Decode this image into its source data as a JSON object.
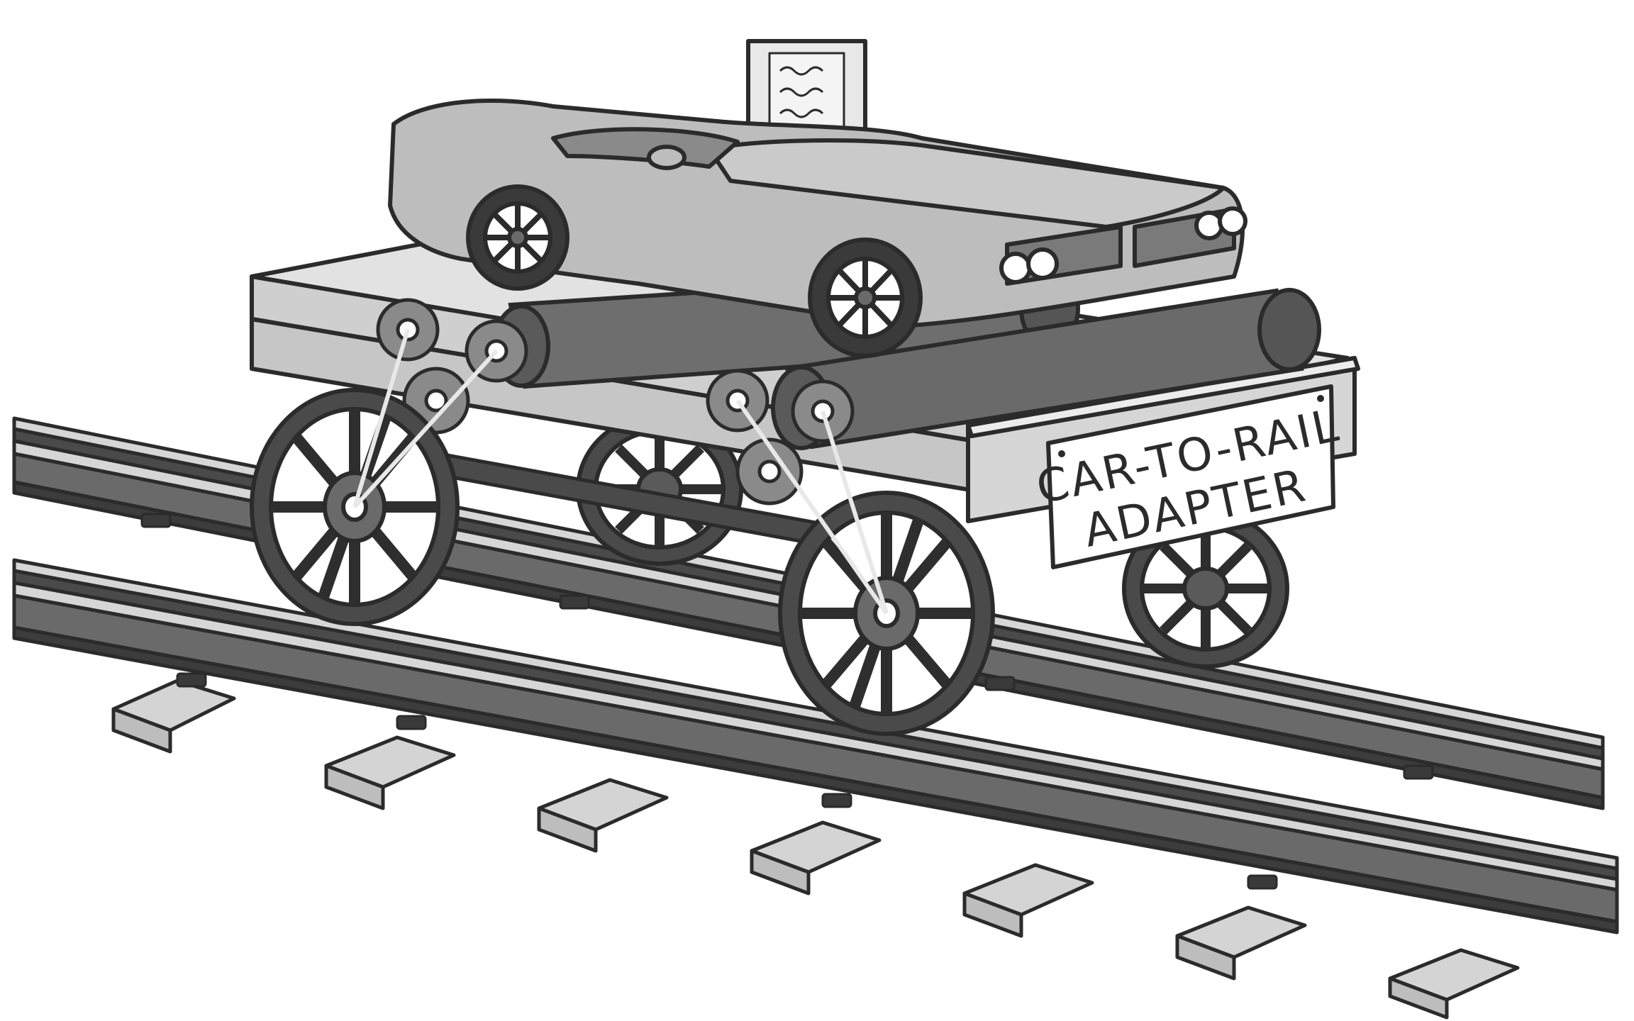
{
  "sign": {
    "line1": "CAR-TO-RAIL",
    "line2": "ADAPTER"
  },
  "palette": {
    "outline": "#2b2b2b",
    "rail_steel": "#5e5e5e",
    "rail_dark": "#3a3a3a",
    "tie": "#d3d3d3",
    "deck": "#cfcfcf",
    "roller": "#6e6e6e",
    "car_body": "#bdbdbd",
    "wheel_spoke": "#2e2e2e",
    "sign_bg": "#ffffff"
  }
}
